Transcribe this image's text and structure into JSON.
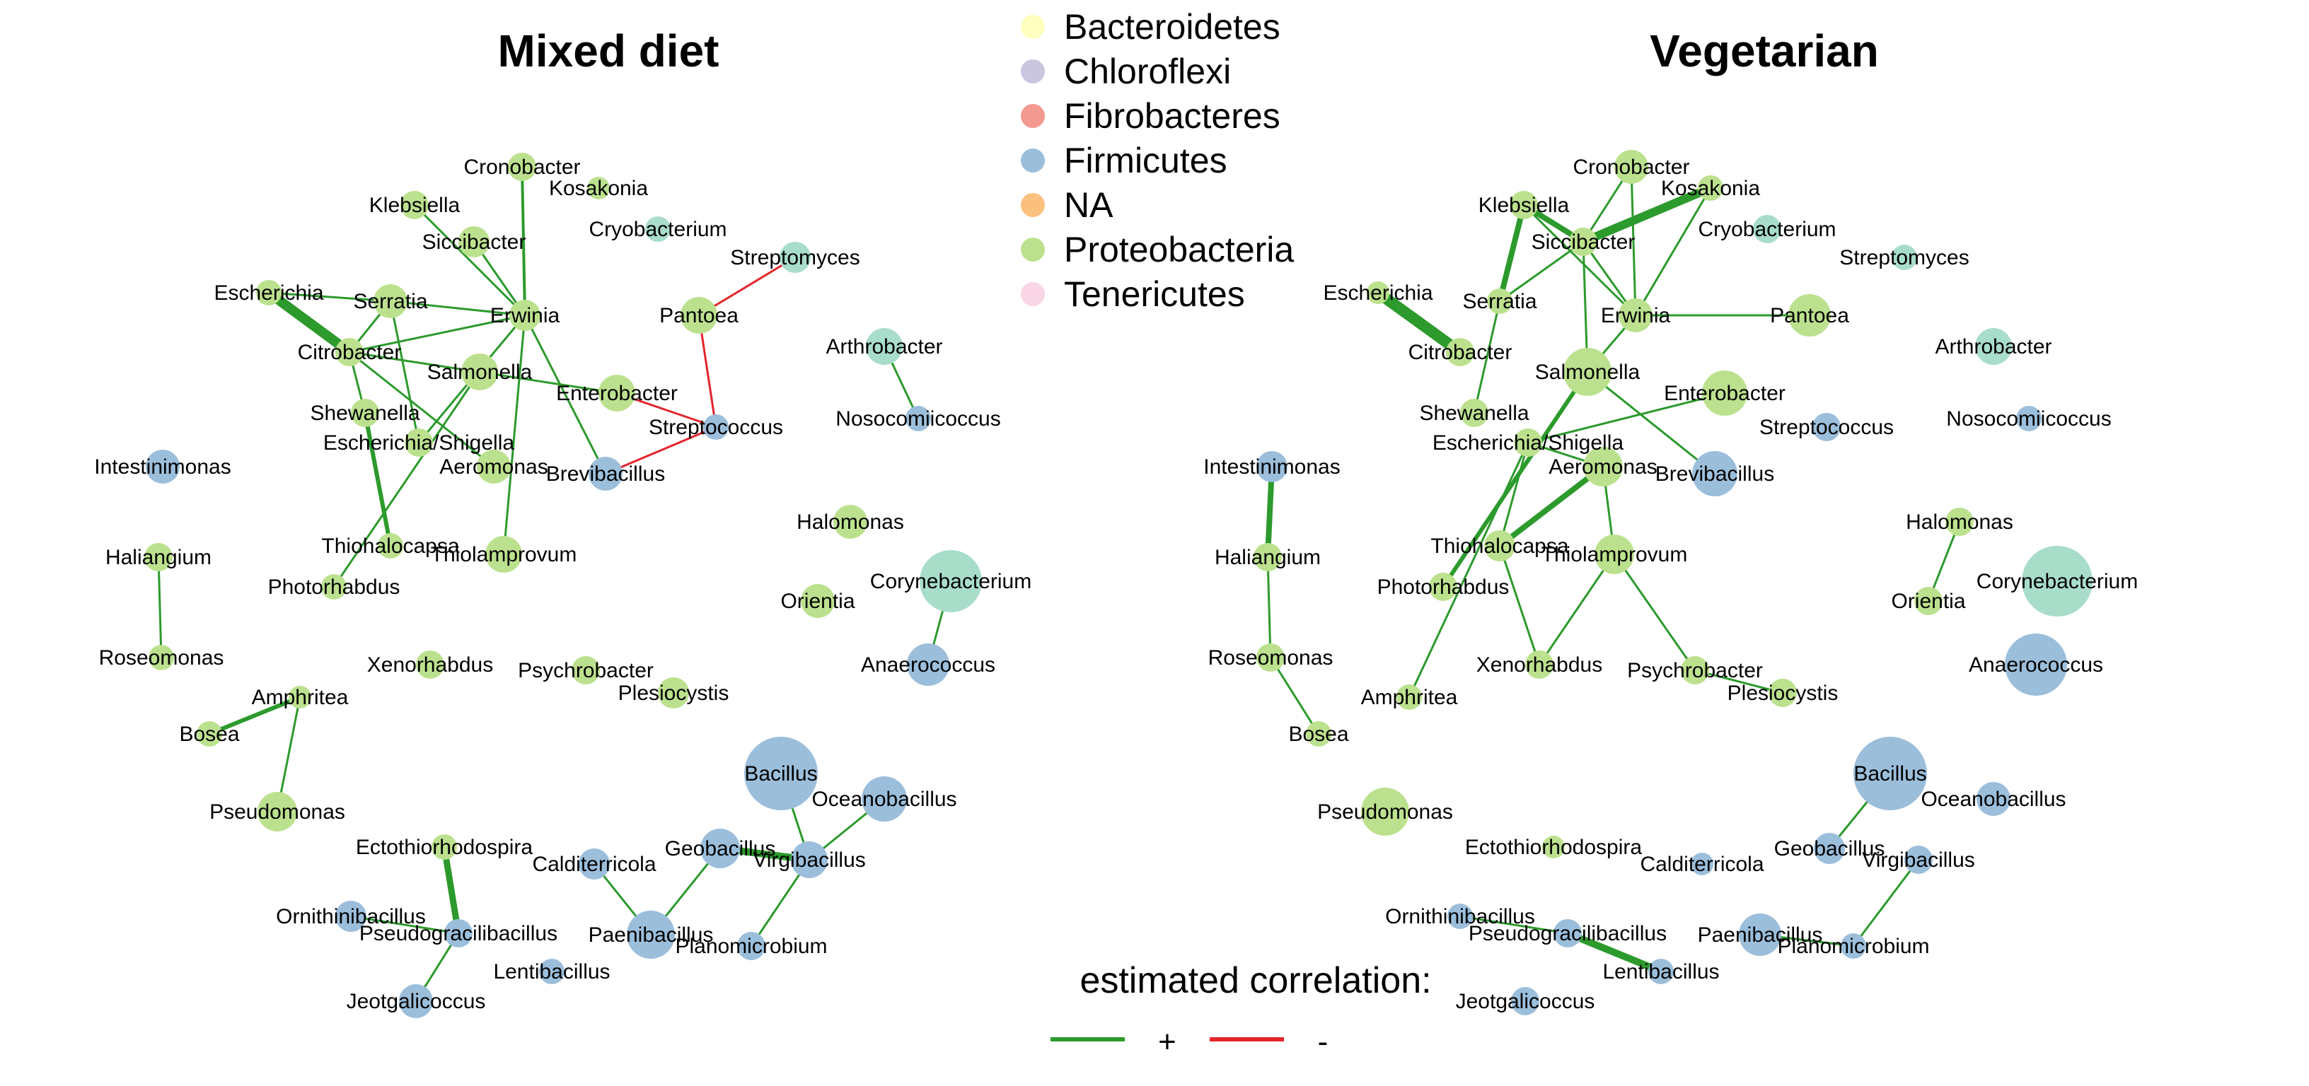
{
  "colors": {
    "Bacteroidetes": "#ffffbf",
    "Chloroflexi": "#cbc6e0",
    "Fibrobacteres": "#f4998f",
    "Firmicutes": "#9bbedb",
    "NA": "#fcc07e",
    "Proteobacteria": "#bce18e",
    "Tenericutes": "#f9d5e5",
    "Actinobacteria": "#a8ddc9",
    "positive_edge": "#2c9a2c",
    "negative_edge": "#e3242b"
  },
  "legend": {
    "phyla": [
      {
        "name": "Bacteroidetes",
        "color": "#ffffbf"
      },
      {
        "name": "Chloroflexi",
        "color": "#cbc6e0"
      },
      {
        "name": "Fibrobacteres",
        "color": "#f4998f"
      },
      {
        "name": "Firmicutes",
        "color": "#9bbedb"
      },
      {
        "name": "NA",
        "color": "#fcc07e"
      },
      {
        "name": "Proteobacteria",
        "color": "#bce18e"
      },
      {
        "name": "Tenericutes",
        "color": "#f9d5e5"
      }
    ],
    "correlation_title": "estimated correlation:",
    "positive_label": "+",
    "negative_label": "-"
  },
  "panels": [
    {
      "title": "Mixed diet",
      "nodes": [
        {
          "name": "Cronobacter",
          "phylum": "Proteobacteria"
        },
        {
          "name": "Kosakonia",
          "phylum": "Proteobacteria"
        },
        {
          "name": "Klebsiella",
          "phylum": "Proteobacteria"
        },
        {
          "name": "Cryobacterium",
          "phylum": "Actinobacteria"
        },
        {
          "name": "Siccibacter",
          "phylum": "Proteobacteria"
        },
        {
          "name": "Streptomyces",
          "phylum": "Actinobacteria"
        },
        {
          "name": "Escherichia",
          "phylum": "Proteobacteria"
        },
        {
          "name": "Serratia",
          "phylum": "Proteobacteria"
        },
        {
          "name": "Erwinia",
          "phylum": "Proteobacteria"
        },
        {
          "name": "Pantoea",
          "phylum": "Proteobacteria"
        },
        {
          "name": "Citrobacter",
          "phylum": "Proteobacteria"
        },
        {
          "name": "Arthrobacter",
          "phylum": "Actinobacteria"
        },
        {
          "name": "Salmonella",
          "phylum": "Proteobacteria"
        },
        {
          "name": "Enterobacter",
          "phylum": "Proteobacteria"
        },
        {
          "name": "Shewanella",
          "phylum": "Proteobacteria"
        },
        {
          "name": "Nosocomiicoccus",
          "phylum": "Firmicutes"
        },
        {
          "name": "Streptococcus",
          "phylum": "Firmicutes"
        },
        {
          "name": "Escherichia/Shigella",
          "phylum": "Proteobacteria"
        },
        {
          "name": "Intestinimonas",
          "phylum": "Firmicutes"
        },
        {
          "name": "Aeromonas",
          "phylum": "Proteobacteria"
        },
        {
          "name": "Brevibacillus",
          "phylum": "Firmicutes"
        },
        {
          "name": "Halomonas",
          "phylum": "Proteobacteria"
        },
        {
          "name": "Thiohalocapsa",
          "phylum": "Proteobacteria"
        },
        {
          "name": "Thiolamprovum",
          "phylum": "Proteobacteria"
        },
        {
          "name": "Haliangium",
          "phylum": "Proteobacteria"
        },
        {
          "name": "Corynebacterium",
          "phylum": "Actinobacteria"
        },
        {
          "name": "Photorhabdus",
          "phylum": "Proteobacteria"
        },
        {
          "name": "Orientia",
          "phylum": "Proteobacteria"
        },
        {
          "name": "Roseomonas",
          "phylum": "Proteobacteria"
        },
        {
          "name": "Xenorhabdus",
          "phylum": "Proteobacteria"
        },
        {
          "name": "Anaerococcus",
          "phylum": "Firmicutes"
        },
        {
          "name": "Psychrobacter",
          "phylum": "Proteobacteria"
        },
        {
          "name": "Plesiocystis",
          "phylum": "Proteobacteria"
        },
        {
          "name": "Amphritea",
          "phylum": "Proteobacteria"
        },
        {
          "name": "Bosea",
          "phylum": "Proteobacteria"
        },
        {
          "name": "Bacillus",
          "phylum": "Firmicutes"
        },
        {
          "name": "Oceanobacillus",
          "phylum": "Firmicutes"
        },
        {
          "name": "Pseudomonas",
          "phylum": "Proteobacteria"
        },
        {
          "name": "Ectothiorhodospira",
          "phylum": "Proteobacteria"
        },
        {
          "name": "Geobacillus",
          "phylum": "Firmicutes"
        },
        {
          "name": "Virgibacillus",
          "phylum": "Firmicutes"
        },
        {
          "name": "Calditerricola",
          "phylum": "Firmicutes"
        },
        {
          "name": "Ornithinibacillus",
          "phylum": "Firmicutes"
        },
        {
          "name": "Pseudogracilibacillus",
          "phylum": "Firmicutes"
        },
        {
          "name": "Paenibacillus",
          "phylum": "Firmicutes"
        },
        {
          "name": "Planomicrobium",
          "phylum": "Firmicutes"
        },
        {
          "name": "Lentibacillus",
          "phylum": "Firmicutes"
        },
        {
          "name": "Jeotgalicoccus",
          "phylum": "Firmicutes"
        }
      ],
      "edges": [
        {
          "source": "Cronobacter",
          "target": "Erwinia",
          "sign": "+"
        },
        {
          "source": "Klebsiella",
          "target": "Erwinia",
          "sign": "+"
        },
        {
          "source": "Siccibacter",
          "target": "Erwinia",
          "sign": "+"
        },
        {
          "source": "Serratia",
          "target": "Erwinia",
          "sign": "+"
        },
        {
          "source": "Escherichia",
          "target": "Serratia",
          "sign": "+"
        },
        {
          "source": "Escherichia",
          "target": "Citrobacter",
          "sign": "+"
        },
        {
          "source": "Serratia",
          "target": "Citrobacter",
          "sign": "+"
        },
        {
          "source": "Citrobacter",
          "target": "Erwinia",
          "sign": "+"
        },
        {
          "source": "Citrobacter",
          "target": "Enterobacter",
          "sign": "+"
        },
        {
          "source": "Citrobacter",
          "target": "Aeromonas",
          "sign": "+"
        },
        {
          "source": "Citrobacter",
          "target": "Shewanella",
          "sign": "+"
        },
        {
          "source": "Serratia",
          "target": "Escherichia/Shigella",
          "sign": "+"
        },
        {
          "source": "Shewanella",
          "target": "Thiohalocapsa",
          "sign": "+"
        },
        {
          "source": "Erwinia",
          "target": "Thiolamprovum",
          "sign": "+"
        },
        {
          "source": "Erwinia",
          "target": "Escherichia/Shigella",
          "sign": "+"
        },
        {
          "source": "Erwinia",
          "target": "Brevibacillus",
          "sign": "+"
        },
        {
          "source": "Salmonella",
          "target": "Photorhabdus",
          "sign": "+"
        },
        {
          "source": "Pantoea",
          "target": "Streptomyces",
          "sign": "-"
        },
        {
          "source": "Pantoea",
          "target": "Streptococcus",
          "sign": "-"
        },
        {
          "source": "Enterobacter",
          "target": "Streptococcus",
          "sign": "-"
        },
        {
          "source": "Brevibacillus",
          "target": "Streptococcus",
          "sign": "-"
        },
        {
          "source": "Arthrobacter",
          "target": "Nosocomiicoccus",
          "sign": "+"
        },
        {
          "source": "Haliangium",
          "target": "Roseomonas",
          "sign": "+"
        },
        {
          "source": "Corynebacterium",
          "target": "Anaerococcus",
          "sign": "+"
        },
        {
          "source": "Bosea",
          "target": "Amphritea",
          "sign": "+"
        },
        {
          "source": "Amphritea",
          "target": "Pseudomonas",
          "sign": "+"
        },
        {
          "source": "Ectothiorhodospira",
          "target": "Pseudogracilibacillus",
          "sign": "+"
        },
        {
          "source": "Ornithinibacillus",
          "target": "Pseudogracilibacillus",
          "sign": "+"
        },
        {
          "source": "Pseudogracilibacillus",
          "target": "Jeotgalicoccus",
          "sign": "+"
        },
        {
          "source": "Calditerricola",
          "target": "Paenibacillus",
          "sign": "+"
        },
        {
          "source": "Paenibacillus",
          "target": "Geobacillus",
          "sign": "+"
        },
        {
          "source": "Geobacillus",
          "target": "Virgibacillus",
          "sign": "+"
        },
        {
          "source": "Bacillus",
          "target": "Virgibacillus",
          "sign": "+"
        },
        {
          "source": "Oceanobacillus",
          "target": "Virgibacillus",
          "sign": "+"
        },
        {
          "source": "Virgibacillus",
          "target": "Planomicrobium",
          "sign": "+"
        }
      ]
    },
    {
      "title": "Vegetarian",
      "nodes": [
        {
          "name": "Cronobacter",
          "phylum": "Proteobacteria"
        },
        {
          "name": "Kosakonia",
          "phylum": "Proteobacteria"
        },
        {
          "name": "Klebsiella",
          "phylum": "Proteobacteria"
        },
        {
          "name": "Cryobacterium",
          "phylum": "Actinobacteria"
        },
        {
          "name": "Siccibacter",
          "phylum": "Proteobacteria"
        },
        {
          "name": "Streptomyces",
          "phylum": "Actinobacteria"
        },
        {
          "name": "Escherichia",
          "phylum": "Proteobacteria"
        },
        {
          "name": "Serratia",
          "phylum": "Proteobacteria"
        },
        {
          "name": "Erwinia",
          "phylum": "Proteobacteria"
        },
        {
          "name": "Pantoea",
          "phylum": "Proteobacteria"
        },
        {
          "name": "Citrobacter",
          "phylum": "Proteobacteria"
        },
        {
          "name": "Arthrobacter",
          "phylum": "Actinobacteria"
        },
        {
          "name": "Salmonella",
          "phylum": "Proteobacteria"
        },
        {
          "name": "Enterobacter",
          "phylum": "Proteobacteria"
        },
        {
          "name": "Shewanella",
          "phylum": "Proteobacteria"
        },
        {
          "name": "Streptococcus",
          "phylum": "Firmicutes"
        },
        {
          "name": "Nosocomiicoccus",
          "phylum": "Firmicutes"
        },
        {
          "name": "Escherichia/Shigella",
          "phylum": "Proteobacteria"
        },
        {
          "name": "Intestinimonas",
          "phylum": "Firmicutes"
        },
        {
          "name": "Aeromonas",
          "phylum": "Proteobacteria"
        },
        {
          "name": "Brevibacillus",
          "phylum": "Firmicutes"
        },
        {
          "name": "Halomonas",
          "phylum": "Proteobacteria"
        },
        {
          "name": "Thiohalocapsa",
          "phylum": "Proteobacteria"
        },
        {
          "name": "Thiolamprovum",
          "phylum": "Proteobacteria"
        },
        {
          "name": "Haliangium",
          "phylum": "Proteobacteria"
        },
        {
          "name": "Corynebacterium",
          "phylum": "Actinobacteria"
        },
        {
          "name": "Photorhabdus",
          "phylum": "Proteobacteria"
        },
        {
          "name": "Orientia",
          "phylum": "Proteobacteria"
        },
        {
          "name": "Roseomonas",
          "phylum": "Proteobacteria"
        },
        {
          "name": "Xenorhabdus",
          "phylum": "Proteobacteria"
        },
        {
          "name": "Anaerococcus",
          "phylum": "Firmicutes"
        },
        {
          "name": "Psychrobacter",
          "phylum": "Proteobacteria"
        },
        {
          "name": "Plesiocystis",
          "phylum": "Proteobacteria"
        },
        {
          "name": "Amphritea",
          "phylum": "Proteobacteria"
        },
        {
          "name": "Bosea",
          "phylum": "Proteobacteria"
        },
        {
          "name": "Bacillus",
          "phylum": "Firmicutes"
        },
        {
          "name": "Oceanobacillus",
          "phylum": "Firmicutes"
        },
        {
          "name": "Pseudomonas",
          "phylum": "Proteobacteria"
        },
        {
          "name": "Ectothiorhodospira",
          "phylum": "Proteobacteria"
        },
        {
          "name": "Geobacillus",
          "phylum": "Firmicutes"
        },
        {
          "name": "Virgibacillus",
          "phylum": "Firmicutes"
        },
        {
          "name": "Calditerricola",
          "phylum": "Firmicutes"
        },
        {
          "name": "Ornithinibacillus",
          "phylum": "Firmicutes"
        },
        {
          "name": "Pseudogracilibacillus",
          "phylum": "Firmicutes"
        },
        {
          "name": "Paenibacillus",
          "phylum": "Firmicutes"
        },
        {
          "name": "Planomicrobium",
          "phylum": "Firmicutes"
        },
        {
          "name": "Lentibacillus",
          "phylum": "Firmicutes"
        },
        {
          "name": "Jeotgalicoccus",
          "phylum": "Firmicutes"
        }
      ],
      "edges": [
        {
          "source": "Cronobacter",
          "target": "Siccibacter",
          "sign": "+"
        },
        {
          "source": "Cronobacter",
          "target": "Erwinia",
          "sign": "+"
        },
        {
          "source": "Klebsiella",
          "target": "Siccibacter",
          "sign": "+"
        },
        {
          "source": "Klebsiella",
          "target": "Serratia",
          "sign": "+"
        },
        {
          "source": "Klebsiella",
          "target": "Erwinia",
          "sign": "+"
        },
        {
          "source": "Kosakonia",
          "target": "Siccibacter",
          "sign": "+"
        },
        {
          "source": "Kosakonia",
          "target": "Erwinia",
          "sign": "+"
        },
        {
          "source": "Siccibacter",
          "target": "Serratia",
          "sign": "+"
        },
        {
          "source": "Siccibacter",
          "target": "Erwinia",
          "sign": "+"
        },
        {
          "source": "Siccibacter",
          "target": "Salmonella",
          "sign": "+"
        },
        {
          "source": "Erwinia",
          "target": "Pantoea",
          "sign": "+"
        },
        {
          "source": "Erwinia",
          "target": "Salmonella",
          "sign": "+"
        },
        {
          "source": "Escherichia",
          "target": "Citrobacter",
          "sign": "+"
        },
        {
          "source": "Serratia",
          "target": "Shewanella",
          "sign": "+"
        },
        {
          "source": "Salmonella",
          "target": "Brevibacillus",
          "sign": "+"
        },
        {
          "source": "Salmonella",
          "target": "Photorhabdus",
          "sign": "+"
        },
        {
          "source": "Enterobacter",
          "target": "Escherichia/Shigella",
          "sign": "+"
        },
        {
          "source": "Escherichia/Shigella",
          "target": "Thiohalocapsa",
          "sign": "+"
        },
        {
          "source": "Escherichia/Shigella",
          "target": "Amphritea",
          "sign": "+"
        },
        {
          "source": "Escherichia/Shigella",
          "target": "Aeromonas",
          "sign": "+"
        },
        {
          "source": "Aeromonas",
          "target": "Thiolamprovum",
          "sign": "+"
        },
        {
          "source": "Aeromonas",
          "target": "Thiohalocapsa",
          "sign": "+"
        },
        {
          "source": "Thiohalocapsa",
          "target": "Xenorhabdus",
          "sign": "+"
        },
        {
          "source": "Thiolamprovum",
          "target": "Xenorhabdus",
          "sign": "+"
        },
        {
          "source": "Thiolamprovum",
          "target": "Psychrobacter",
          "sign": "+"
        },
        {
          "source": "Psychrobacter",
          "target": "Plesiocystis",
          "sign": "+"
        },
        {
          "source": "Intestinimonas",
          "target": "Haliangium",
          "sign": "+"
        },
        {
          "source": "Haliangium",
          "target": "Roseomonas",
          "sign": "+"
        },
        {
          "source": "Roseomonas",
          "target": "Bosea",
          "sign": "+"
        },
        {
          "source": "Halomonas",
          "target": "Orientia",
          "sign": "+"
        },
        {
          "source": "Bacillus",
          "target": "Geobacillus",
          "sign": "+"
        },
        {
          "source": "Virgibacillus",
          "target": "Planomicrobium",
          "sign": "+"
        },
        {
          "source": "Paenibacillus",
          "target": "Planomicrobium",
          "sign": "+"
        },
        {
          "source": "Pseudogracilibacillus",
          "target": "Lentibacillus",
          "sign": "+"
        },
        {
          "source": "Ornithinibacillus",
          "target": "Pseudogracilibacillus",
          "sign": "+"
        }
      ]
    }
  ]
}
